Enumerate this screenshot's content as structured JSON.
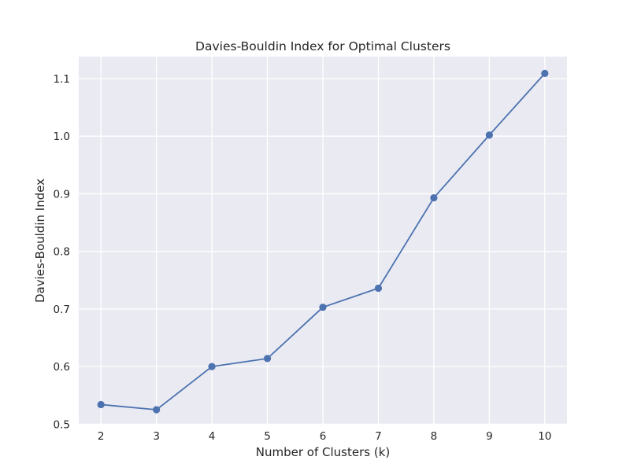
{
  "chart_data": {
    "type": "line",
    "title": "Davies-Bouldin Index for Optimal Clusters",
    "xlabel": "Number of Clusters (k)",
    "ylabel": "Davies-Bouldin Index",
    "x": [
      2,
      3,
      4,
      5,
      6,
      7,
      8,
      9,
      10
    ],
    "series": [
      {
        "values": [
          0.534,
          0.525,
          0.6,
          0.614,
          0.703,
          0.736,
          0.893,
          1.002,
          1.109
        ],
        "color": "#4c72b0",
        "marker": "circle"
      }
    ],
    "xticks": [
      "2",
      "3",
      "4",
      "5",
      "6",
      "7",
      "8",
      "9",
      "10"
    ],
    "yticks": [
      "0.5",
      "0.6",
      "0.7",
      "0.8",
      "0.9",
      "1.0",
      "1.1"
    ],
    "xlim": [
      1.6,
      10.4
    ],
    "ylim": [
      0.4991,
      1.1382
    ],
    "grid": true,
    "background_color": "#eaeaf2",
    "grid_color": "#ffffff"
  }
}
